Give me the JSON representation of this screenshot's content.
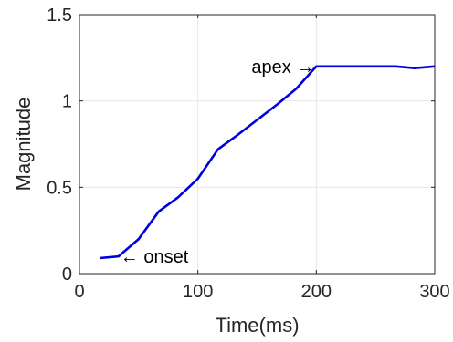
{
  "chart_data": {
    "type": "line",
    "xlabel": "Time(ms)",
    "ylabel": "Magnitude",
    "xlim": [
      0,
      300
    ],
    "ylim": [
      0,
      1.5
    ],
    "xticks": [
      0,
      100,
      200,
      300
    ],
    "xtick_labels": [
      "0",
      "100",
      "200",
      "300"
    ],
    "yticks": [
      0,
      0.5,
      1,
      1.5
    ],
    "ytick_labels": [
      "0",
      "0.5",
      "1",
      "1.5"
    ],
    "grid": true,
    "series": [
      {
        "color": "#0000dd",
        "x": [
          17,
          33,
          50,
          67,
          83,
          100,
          117,
          133,
          150,
          167,
          183,
          200,
          217,
          233,
          250,
          267,
          283,
          300
        ],
        "y": [
          0.09,
          0.1,
          0.2,
          0.36,
          0.44,
          0.55,
          0.72,
          0.8,
          0.89,
          0.98,
          1.07,
          1.2,
          1.2,
          1.2,
          1.2,
          1.2,
          1.19,
          1.2
        ]
      }
    ],
    "annotations": [
      {
        "text": "onset",
        "x": 33,
        "y": 0.1,
        "arrow": "←"
      },
      {
        "text": "apex",
        "x": 200,
        "y": 1.2,
        "arrow": "→"
      }
    ]
  }
}
